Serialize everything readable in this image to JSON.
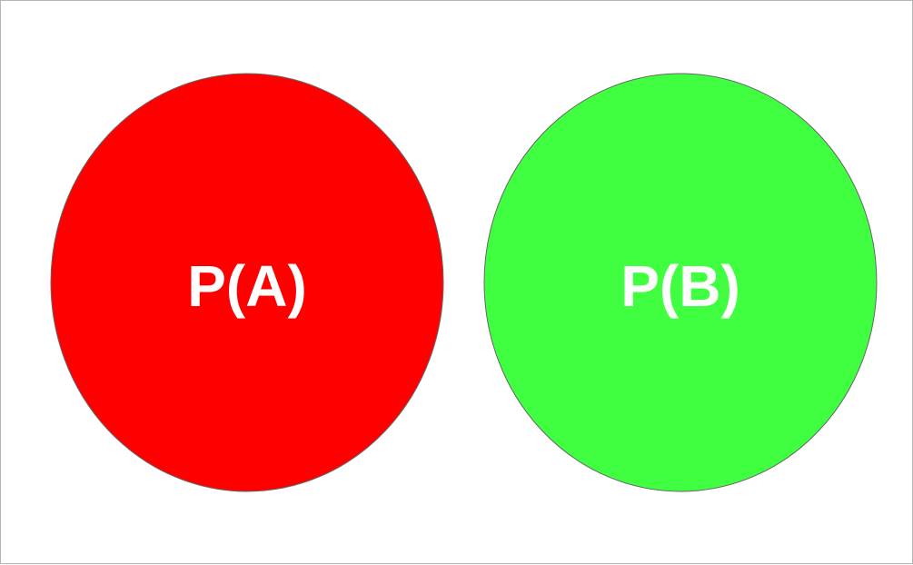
{
  "diagram": {
    "type": "two-disjoint-sets",
    "sets": [
      {
        "id": "A",
        "label": "P(A)",
        "fill": "#ff0000",
        "text_color": "#ffffff"
      },
      {
        "id": "B",
        "label": "P(B)",
        "fill": "#40ff40",
        "text_color": "#ffffff"
      }
    ]
  }
}
